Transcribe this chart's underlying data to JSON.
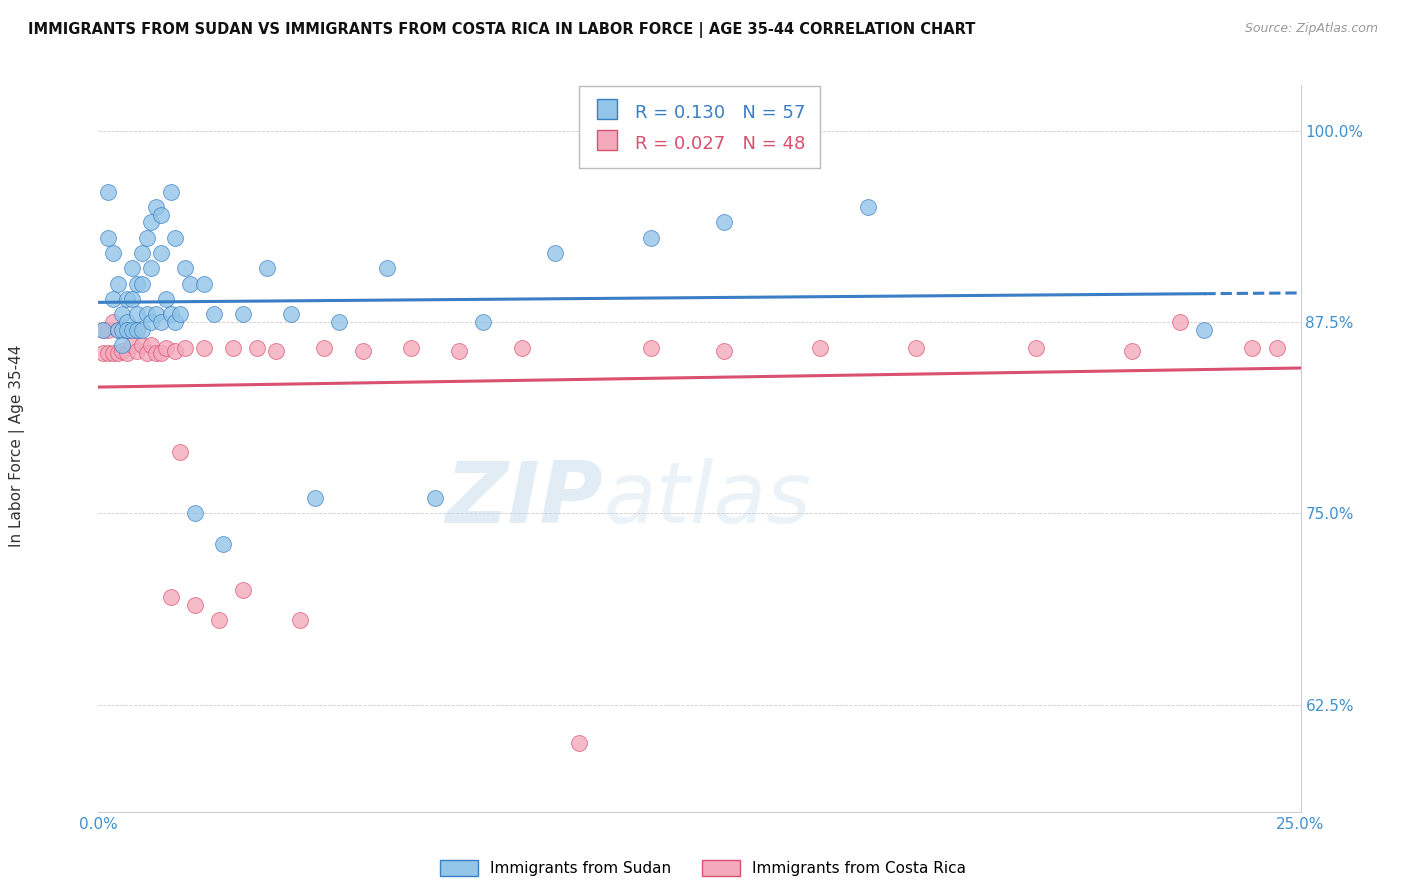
{
  "title": "IMMIGRANTS FROM SUDAN VS IMMIGRANTS FROM COSTA RICA IN LABOR FORCE | AGE 35-44 CORRELATION CHART",
  "source": "Source: ZipAtlas.com",
  "ylabel": "In Labor Force | Age 35-44",
  "xlim": [
    0.0,
    0.25
  ],
  "ylim": [
    0.555,
    1.03
  ],
  "yticks": [
    0.625,
    0.75,
    0.875,
    1.0
  ],
  "ytick_labels": [
    "62.5%",
    "75.0%",
    "87.5%",
    "100.0%"
  ],
  "xticks": [
    0.0,
    0.05,
    0.1,
    0.15,
    0.2,
    0.25
  ],
  "xtick_labels": [
    "0.0%",
    "",
    "",
    "",
    "",
    "25.0%"
  ],
  "R_sudan": 0.13,
  "N_sudan": 57,
  "R_costa_rica": 0.027,
  "N_costa_rica": 48,
  "sudan_color": "#92C5E8",
  "costa_rica_color": "#F4AABC",
  "trend_sudan_color": "#3A7EC6",
  "trend_costa_rica_color": "#D95070",
  "background_color": "#ffffff",
  "sudan_x": [
    0.001,
    0.002,
    0.002,
    0.003,
    0.003,
    0.004,
    0.004,
    0.005,
    0.005,
    0.005,
    0.006,
    0.006,
    0.006,
    0.007,
    0.007,
    0.007,
    0.008,
    0.008,
    0.008,
    0.009,
    0.009,
    0.009,
    0.01,
    0.01,
    0.011,
    0.011,
    0.011,
    0.012,
    0.012,
    0.013,
    0.013,
    0.013,
    0.014,
    0.015,
    0.015,
    0.016,
    0.016,
    0.017,
    0.018,
    0.019,
    0.02,
    0.022,
    0.024,
    0.026,
    0.03,
    0.035,
    0.04,
    0.045,
    0.05,
    0.06,
    0.07,
    0.08,
    0.095,
    0.115,
    0.13,
    0.16,
    0.23
  ],
  "sudan_y": [
    0.87,
    0.96,
    0.93,
    0.89,
    0.92,
    0.87,
    0.9,
    0.87,
    0.88,
    0.86,
    0.875,
    0.89,
    0.87,
    0.91,
    0.89,
    0.87,
    0.9,
    0.88,
    0.87,
    0.92,
    0.9,
    0.87,
    0.93,
    0.88,
    0.94,
    0.91,
    0.875,
    0.95,
    0.88,
    0.945,
    0.92,
    0.875,
    0.89,
    0.96,
    0.88,
    0.93,
    0.875,
    0.88,
    0.91,
    0.9,
    0.75,
    0.9,
    0.88,
    0.73,
    0.88,
    0.91,
    0.88,
    0.76,
    0.875,
    0.91,
    0.76,
    0.875,
    0.92,
    0.93,
    0.94,
    0.95,
    0.87
  ],
  "costa_rica_x": [
    0.001,
    0.001,
    0.002,
    0.002,
    0.003,
    0.003,
    0.004,
    0.004,
    0.005,
    0.005,
    0.006,
    0.006,
    0.007,
    0.008,
    0.008,
    0.009,
    0.01,
    0.011,
    0.012,
    0.013,
    0.014,
    0.015,
    0.016,
    0.017,
    0.018,
    0.02,
    0.022,
    0.025,
    0.028,
    0.03,
    0.033,
    0.037,
    0.042,
    0.047,
    0.055,
    0.065,
    0.075,
    0.088,
    0.1,
    0.115,
    0.13,
    0.15,
    0.17,
    0.195,
    0.215,
    0.225,
    0.24,
    0.245
  ],
  "costa_rica_y": [
    0.87,
    0.855,
    0.87,
    0.855,
    0.875,
    0.855,
    0.87,
    0.855,
    0.87,
    0.856,
    0.87,
    0.855,
    0.86,
    0.87,
    0.856,
    0.86,
    0.855,
    0.86,
    0.855,
    0.855,
    0.858,
    0.695,
    0.856,
    0.79,
    0.858,
    0.69,
    0.858,
    0.68,
    0.858,
    0.7,
    0.858,
    0.856,
    0.68,
    0.858,
    0.856,
    0.858,
    0.856,
    0.858,
    0.6,
    0.858,
    0.856,
    0.858,
    0.858,
    0.858,
    0.856,
    0.875,
    0.858,
    0.858
  ],
  "watermark_text": "ZIPatlas",
  "legend_sudan_label": "Immigrants from Sudan",
  "legend_costa_rica_label": "Immigrants from Costa Rica"
}
